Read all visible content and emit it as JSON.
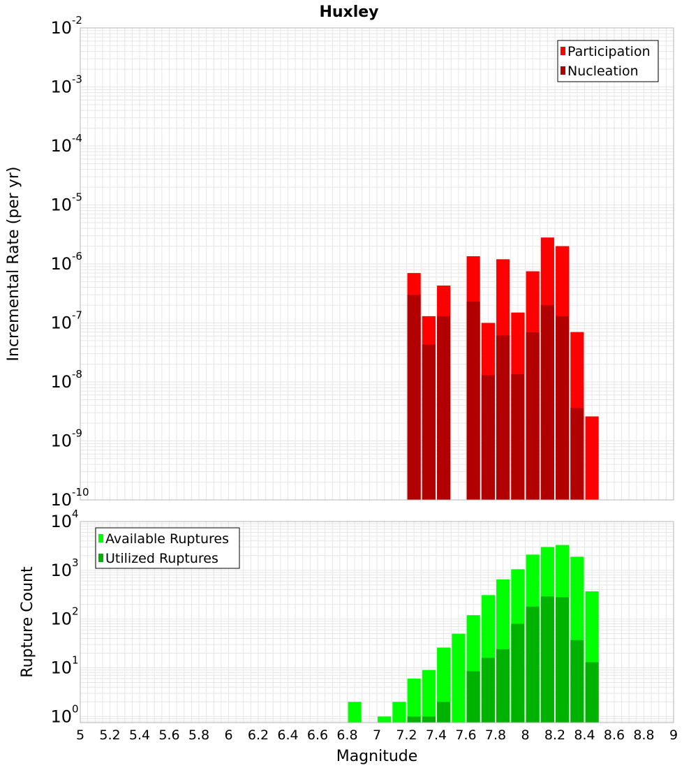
{
  "title": "Huxley",
  "xlabel": "Magnitude",
  "colors": {
    "participation": "#ff0000",
    "nucleation": "#b20000",
    "available": "#00ff00",
    "utilized": "#00b200",
    "grid": "#e6e6e6",
    "frame": "#b4b4b4"
  },
  "chart_data": [
    {
      "type": "bar",
      "ylabel": "Incremental Rate (per yr)",
      "scale": "log",
      "xlim": [
        5,
        9
      ],
      "ylim": [
        1e-10,
        0.01
      ],
      "ytick_exponents": [
        -10,
        -9,
        -8,
        -7,
        -6,
        -5,
        -4,
        -3,
        -2
      ],
      "legend": "top-right",
      "series": [
        {
          "name": "Participation",
          "x": [
            7.25,
            7.35,
            7.45,
            7.65,
            7.75,
            7.85,
            7.95,
            8.05,
            8.15,
            8.25,
            8.35,
            8.45
          ],
          "values": [
            7e-07,
            1.3e-07,
            4.3e-07,
            1.35e-06,
            1e-07,
            1.2e-06,
            1.5e-07,
            7.5e-07,
            2.8e-06,
            2e-06,
            7e-08,
            2.6e-09
          ]
        },
        {
          "name": "Nucleation",
          "x": [
            7.25,
            7.35,
            7.45,
            7.65,
            7.75,
            7.85,
            7.95,
            8.05,
            8.15,
            8.25,
            8.35,
            8.45
          ],
          "values": [
            3e-07,
            4.3e-08,
            1.3e-07,
            2.3e-07,
            1.3e-08,
            6.1e-08,
            1.35e-08,
            6.9e-08,
            2e-07,
            1.3e-07,
            3.6e-09,
            null
          ]
        }
      ]
    },
    {
      "type": "bar",
      "ylabel": "Rupture Count",
      "scale": "log",
      "xlim": [
        5,
        9
      ],
      "ylim": [
        0.75,
        10000
      ],
      "ytick_exponents": [
        0,
        1,
        2,
        3,
        4
      ],
      "legend": "top-left",
      "series": [
        {
          "name": "Available Ruptures",
          "x": [
            6.85,
            7.05,
            7.15,
            7.25,
            7.35,
            7.45,
            7.55,
            7.65,
            7.75,
            7.85,
            7.95,
            8.05,
            8.15,
            8.25,
            8.35,
            8.45
          ],
          "values": [
            2,
            1,
            2,
            6,
            9,
            26,
            50,
            120,
            310,
            650,
            1050,
            2100,
            3000,
            3300,
            1900,
            370
          ]
        },
        {
          "name": "Utilized Ruptures",
          "x": [
            7.25,
            7.35,
            7.45,
            7.65,
            7.75,
            7.85,
            7.95,
            8.05,
            8.15,
            8.25,
            8.35,
            8.45
          ],
          "values": [
            1,
            1,
            2,
            8.5,
            16,
            24,
            80,
            180,
            290,
            280,
            37,
            13
          ]
        }
      ]
    }
  ],
  "xticks": [
    "5",
    "5.2",
    "5.4",
    "5.6",
    "5.8",
    "6",
    "6.2",
    "6.4",
    "6.6",
    "6.8",
    "7",
    "7.2",
    "7.4",
    "7.6",
    "7.8",
    "8",
    "8.2",
    "8.4",
    "8.6",
    "8.8",
    "9"
  ]
}
